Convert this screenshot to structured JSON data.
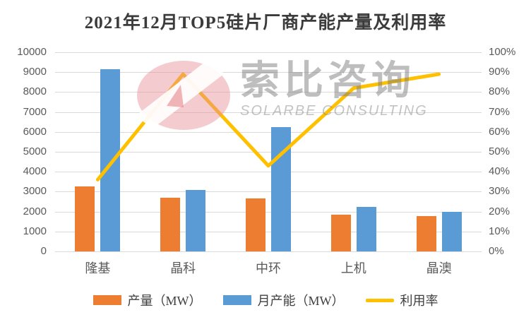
{
  "title": "2021年12月TOP5硅片厂商产能产量及利用率",
  "watermark": {
    "cn": "索比咨询",
    "en": "SOLARBE CONSULTING"
  },
  "colors": {
    "production_bar": "#ED7D31",
    "capacity_bar": "#5B9BD5",
    "utilization_line": "#FFC000",
    "grid": "#D9D9D9",
    "axis_text": "#595959",
    "title_text": "#3B3B3B",
    "watermark_pink": "#E9969B",
    "watermark_gray": "#7D7D7D"
  },
  "chart_data": {
    "type": "bar+line",
    "title": "2021年12月TOP5硅片厂商产能产量及利用率",
    "categories": [
      "隆基",
      "晶科",
      "中环",
      "上机",
      "晶澳"
    ],
    "category_keys": [
      "longji",
      "jinko",
      "zhonghuan",
      "shangji",
      "jingao"
    ],
    "series": [
      {
        "key": "production",
        "name": "产量（MW）",
        "type": "bar",
        "axis": "left",
        "color": "#ED7D31",
        "values": [
          3250,
          2700,
          2650,
          1850,
          1780
        ]
      },
      {
        "key": "capacity",
        "name": "月产能（MW）",
        "type": "bar",
        "axis": "left",
        "color": "#5B9BD5",
        "values": [
          9150,
          3080,
          6250,
          2250,
          2000
        ]
      },
      {
        "key": "utilization",
        "name": "利用率",
        "type": "line",
        "axis": "right",
        "color": "#FFC000",
        "values": [
          36,
          89,
          43,
          82,
          89
        ],
        "unit": "%"
      }
    ],
    "y_left": {
      "min": 0,
      "max": 10000,
      "step": 1000,
      "ticks": [
        "0",
        "1000",
        "2000",
        "3000",
        "4000",
        "5000",
        "6000",
        "7000",
        "8000",
        "9000",
        "10000"
      ]
    },
    "y_right": {
      "min": 0,
      "max": 100,
      "step": 10,
      "suffix": "%",
      "ticks": [
        "0%",
        "10%",
        "20%",
        "30%",
        "40%",
        "50%",
        "60%",
        "70%",
        "80%",
        "90%",
        "100%"
      ]
    },
    "grid": true,
    "legend_position": "bottom"
  }
}
